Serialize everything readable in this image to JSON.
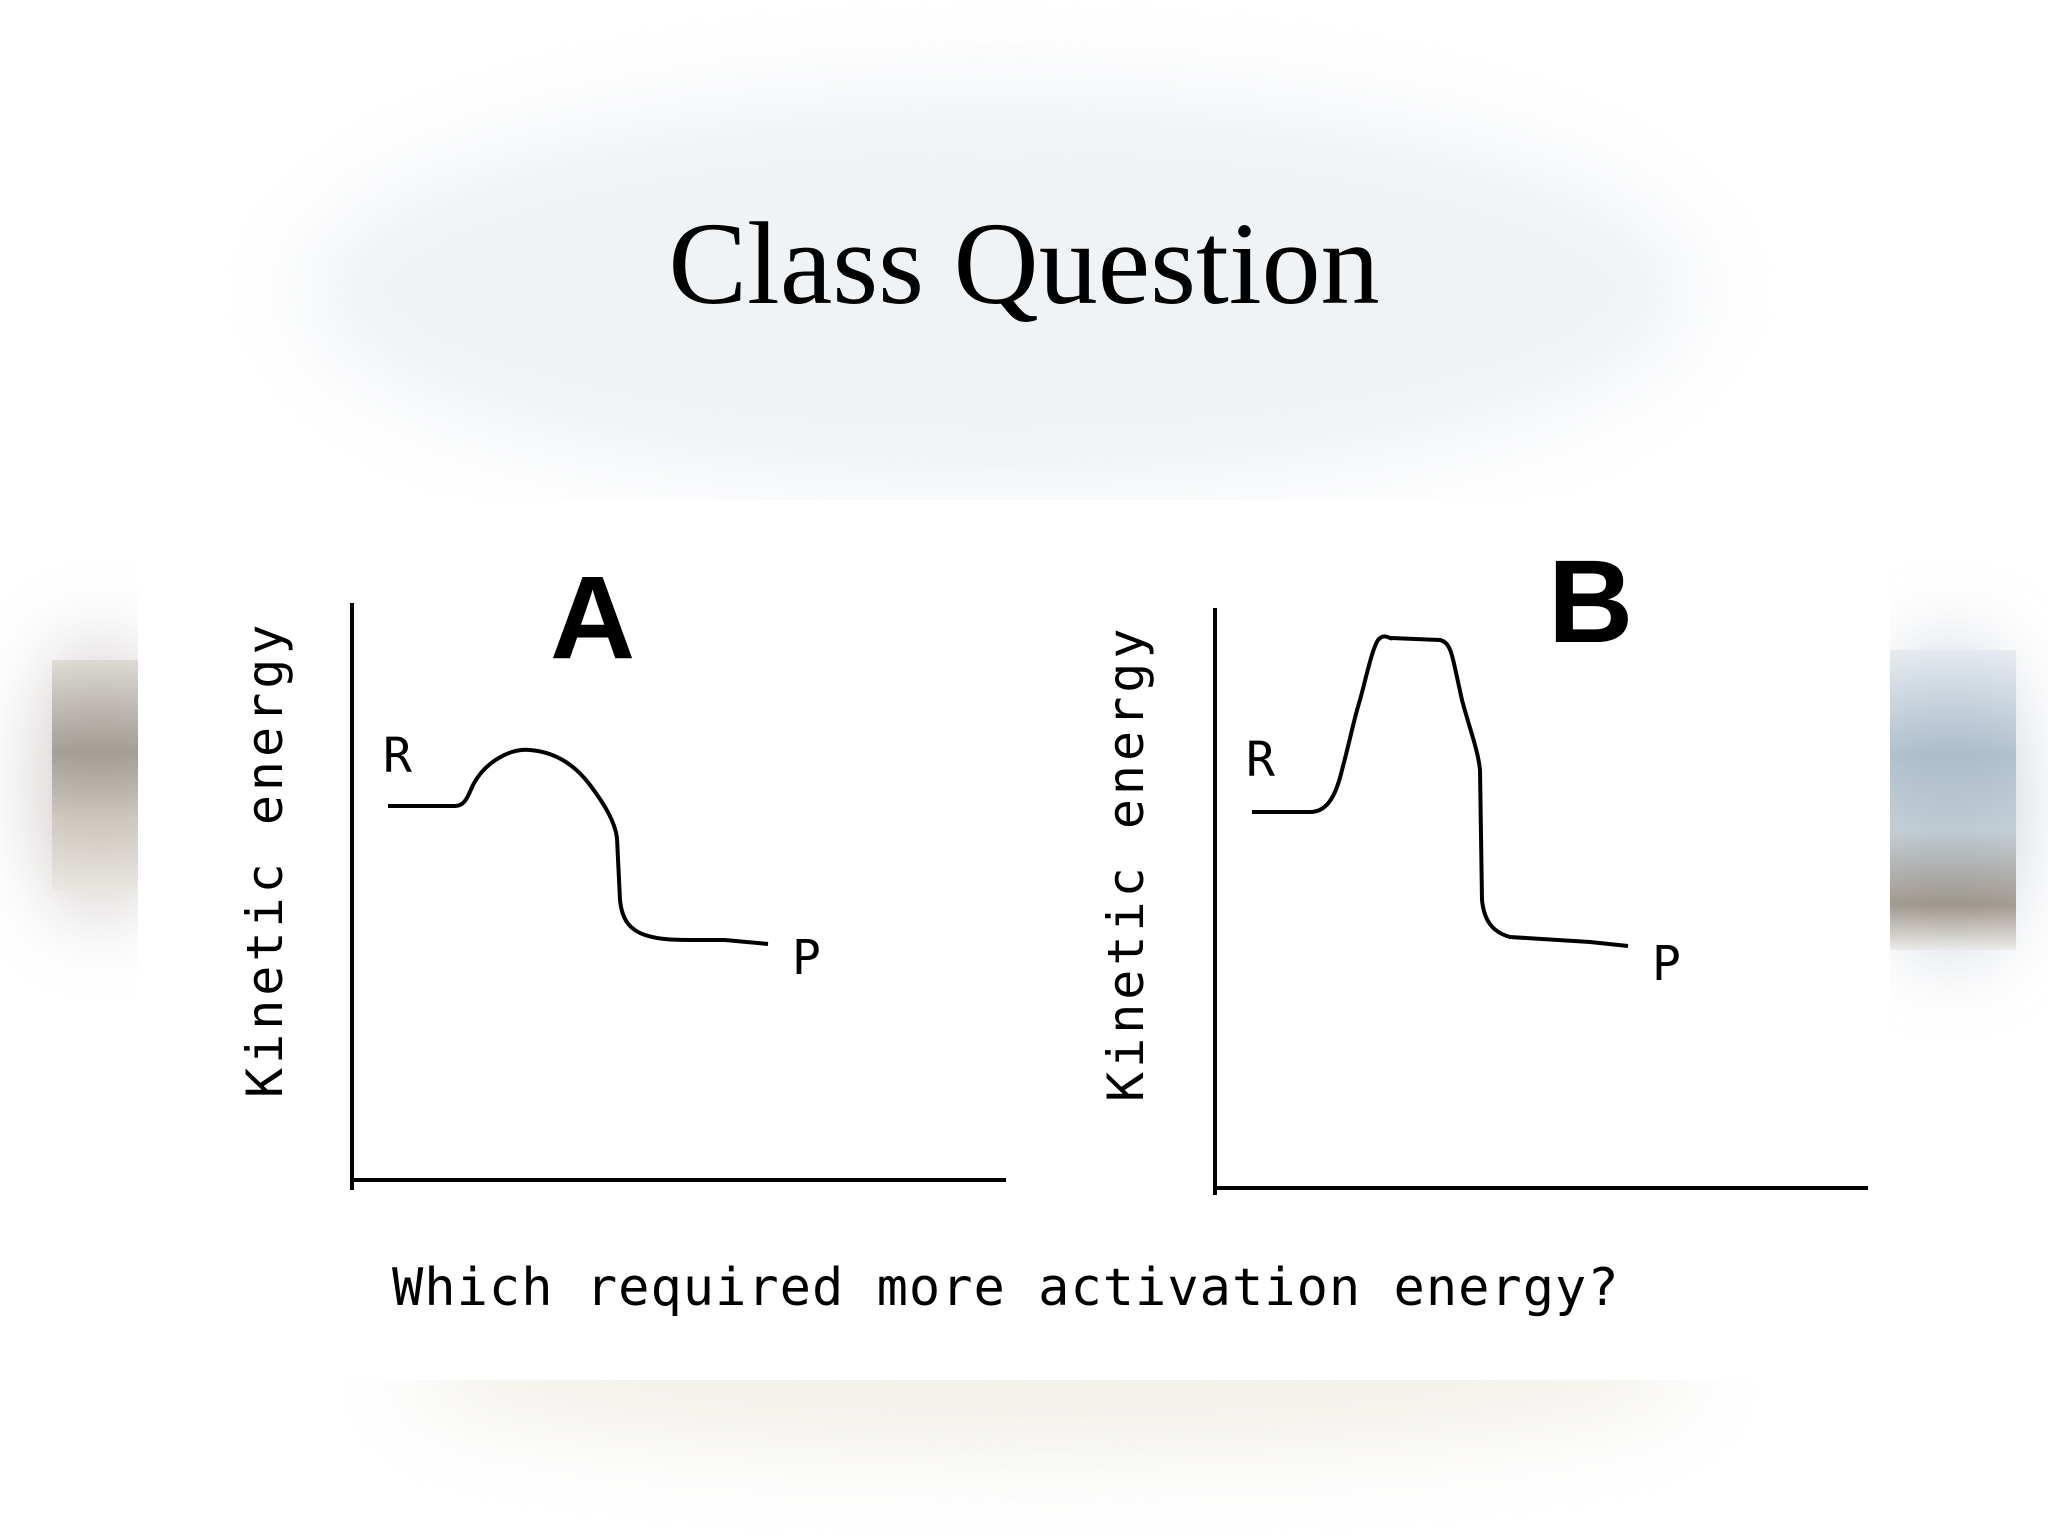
{
  "slide": {
    "title": "Class Question",
    "question": "Which required more activation energy?"
  },
  "diagrams": [
    {
      "panel_label": "A",
      "y_axis_label": "Kinetic energy",
      "reactant_label": "R",
      "product_label": "P"
    },
    {
      "panel_label": "B",
      "y_axis_label": "Kinetic energy",
      "reactant_label": "R",
      "product_label": "P"
    }
  ]
}
